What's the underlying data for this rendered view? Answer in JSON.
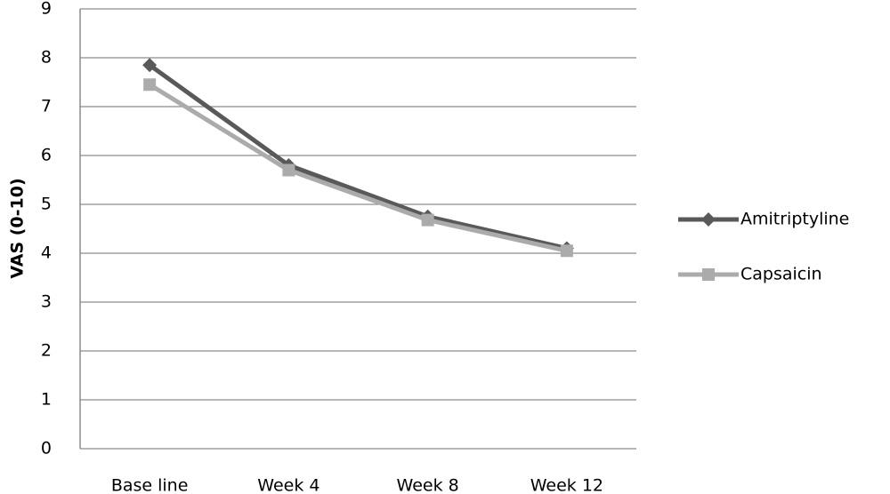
{
  "chart_data": {
    "type": "line",
    "y_label": "VAS (0-10)",
    "categories": [
      "Base line",
      "Week 4",
      "Week 8",
      "Week 12"
    ],
    "series": [
      {
        "name": "Amitriptyline",
        "color": "#595959",
        "marker": "diamond",
        "values": [
          7.85,
          5.8,
          4.75,
          4.1
        ]
      },
      {
        "name": "Capsaicin",
        "color": "#ababab",
        "marker": "square",
        "values": [
          7.45,
          5.7,
          4.68,
          4.05
        ]
      }
    ],
    "ylim": [
      0,
      9
    ],
    "yticks": [
      0,
      1,
      2,
      3,
      4,
      5,
      6,
      7,
      8,
      9
    ],
    "grid": true,
    "legend": "right"
  }
}
